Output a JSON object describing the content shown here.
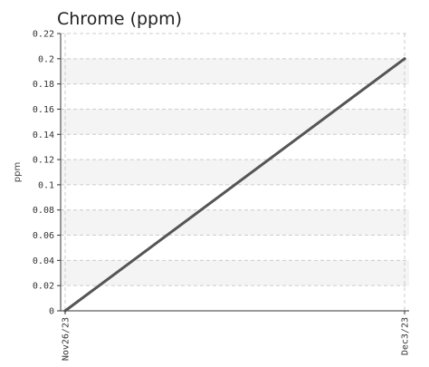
{
  "chart_data": {
    "type": "line",
    "title": "Chrome (ppm)",
    "xlabel": "",
    "ylabel": "ppm",
    "x": [
      "Nov26/23",
      "Dec3/23"
    ],
    "series": [
      {
        "values": [
          0,
          0.2
        ]
      }
    ],
    "yticks": [
      "0",
      "0.02",
      "0.04",
      "0.06",
      "0.08",
      "0.1",
      "0.12",
      "0.14",
      "0.16",
      "0.18",
      "0.2",
      "0.22"
    ],
    "ylim": [
      0,
      0.22
    ],
    "grid": true,
    "legend": "none",
    "colors": {
      "line": "#555555",
      "band": "#f4f4f4",
      "grid": "#cccccc",
      "axis": "#333333"
    }
  }
}
